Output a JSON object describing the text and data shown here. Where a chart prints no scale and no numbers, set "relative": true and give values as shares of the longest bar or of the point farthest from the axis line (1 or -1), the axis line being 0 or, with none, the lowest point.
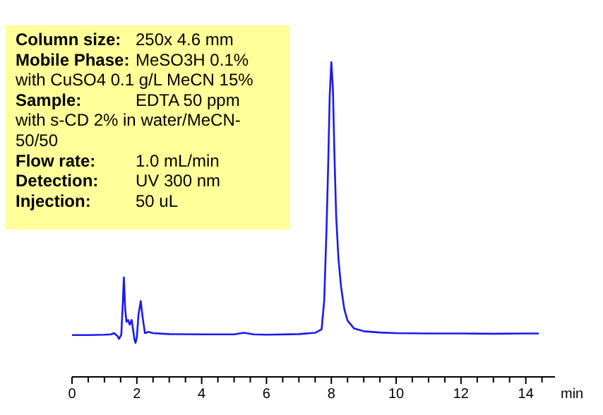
{
  "chart_data": {
    "type": "line",
    "relative": true,
    "xlabel": "min",
    "xlim": [
      0,
      14.9
    ],
    "xticks": [
      0,
      {
        "value": 0.5,
        "label": null
      },
      {
        "value": 1,
        "label": null
      },
      {
        "value": 1.5,
        "label": null
      },
      2,
      {
        "value": 2.5,
        "label": null
      },
      {
        "value": 3,
        "label": null
      },
      {
        "value": 3.5,
        "label": null
      },
      4,
      {
        "value": 4.5,
        "label": null
      },
      {
        "value": 5,
        "label": null
      },
      {
        "value": 5.5,
        "label": null
      },
      6,
      {
        "value": 6.5,
        "label": null
      },
      {
        "value": 7,
        "label": null
      },
      {
        "value": 7.5,
        "label": null
      },
      8,
      {
        "value": 8.5,
        "label": null
      },
      {
        "value": 9,
        "label": null
      },
      {
        "value": 9.5,
        "label": null
      },
      10,
      {
        "value": 10.5,
        "label": null
      },
      {
        "value": 11,
        "label": null
      },
      {
        "value": 11.5,
        "label": null
      },
      12,
      {
        "value": 12.5,
        "label": null
      },
      {
        "value": 13,
        "label": null
      },
      {
        "value": 13.5,
        "label": null
      },
      14,
      {
        "value": 14.5,
        "label": null
      }
    ],
    "line_style": "solid",
    "series": [
      {
        "color": "#1a1aee",
        "x": [
          0,
          0.5,
          1,
          1.2,
          1.3,
          1.4,
          1.45,
          1.52,
          1.57,
          1.6,
          1.64,
          1.68,
          1.73,
          1.78,
          1.84,
          1.88,
          1.93,
          1.96,
          2.0,
          2.05,
          2.12,
          2.18,
          2.25,
          2.35,
          2.5,
          3,
          4,
          5,
          5.3,
          5.6,
          6,
          7,
          7.5,
          7.7,
          7.78,
          7.85,
          7.9,
          7.95,
          8.0,
          8.05,
          8.1,
          8.15,
          8.22,
          8.3,
          8.4,
          8.5,
          8.7,
          9,
          9.5,
          10,
          11,
          12,
          13,
          14,
          14.4
        ],
        "values": [
          0.133,
          0.133,
          0.134,
          0.135,
          0.139,
          0.13,
          0.121,
          0.134,
          0.242,
          0.316,
          0.215,
          0.175,
          0.181,
          0.166,
          0.181,
          0.152,
          0.117,
          0.108,
          0.126,
          0.197,
          0.241,
          0.188,
          0.139,
          0.143,
          0.139,
          0.136,
          0.135,
          0.135,
          0.14,
          0.135,
          0.134,
          0.136,
          0.14,
          0.151,
          0.242,
          0.465,
          0.661,
          0.893,
          1,
          0.911,
          0.688,
          0.509,
          0.375,
          0.286,
          0.215,
          0.179,
          0.154,
          0.145,
          0.141,
          0.139,
          0.138,
          0.138,
          0.137,
          0.138,
          0.138
        ]
      }
    ],
    "annotations": [
      "Column size: 250x 4.6  mm",
      "Mobile Phase: MeSO3H 0.1%\nwith CuSO4 0.1 g/L MeCN 15%",
      "Sample: EDTA 50 ppm\nwith s-CD 2% in water/MeCN-\n50/50",
      "Flow rate: 1.0 mL/min",
      "Detection: UV 300 nm",
      "Injection: 50 uL"
    ]
  }
}
